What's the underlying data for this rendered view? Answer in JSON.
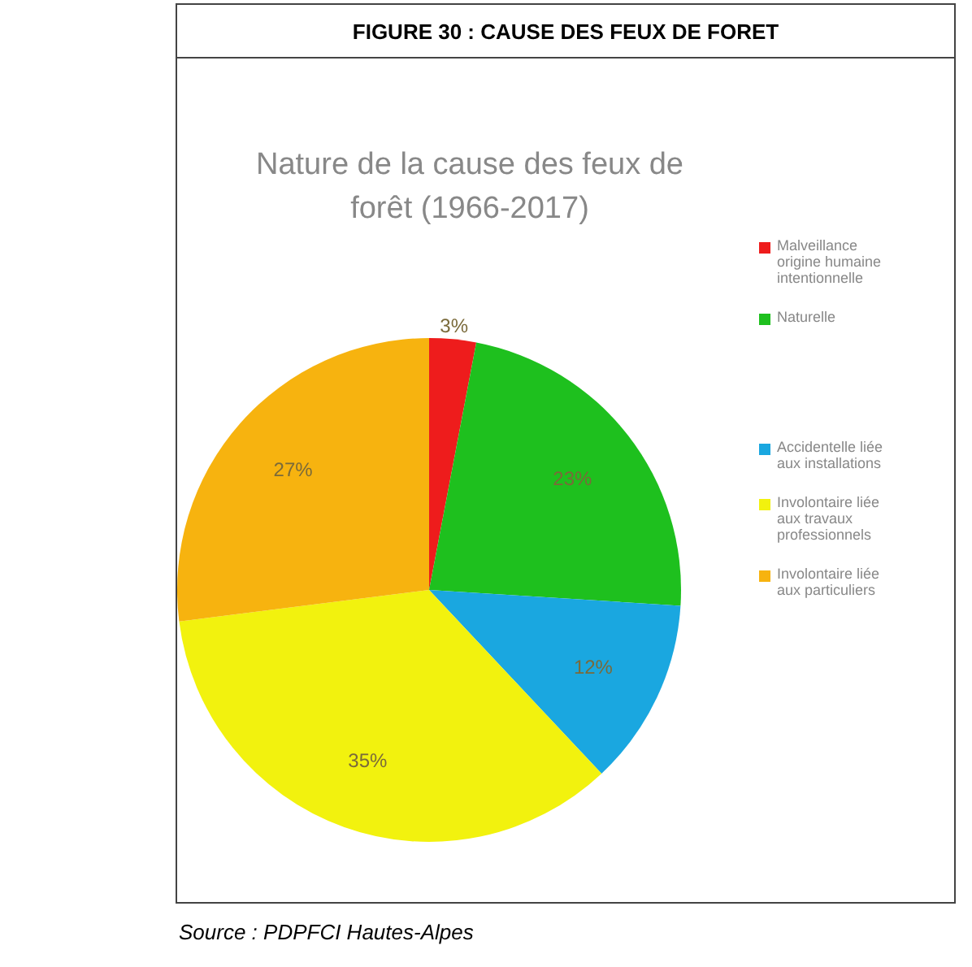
{
  "chart_data": {
    "type": "pie",
    "title": "FIGURE 30 : CAUSE DES FEUX DE FORET",
    "subtitle": "Nature de la cause des feux de forêt (1966-2017)",
    "categories": [
      "Malveillance origine humaine intentionnelle",
      "Naturelle",
      "Accidentelle liée aux installations",
      "Involontaire liée aux travaux professionnels",
      "Involontaire liée aux particuliers"
    ],
    "values": [
      3,
      23,
      12,
      35,
      27
    ],
    "colors": [
      "#ee1c1c",
      "#1ec01e",
      "#1aa7e0",
      "#f2f20e",
      "#f7b30f"
    ],
    "value_labels": [
      "3%",
      "23%",
      "12%",
      "35%",
      "27%"
    ],
    "legend": "right",
    "annotations": [
      "Source : PDPFCI Hautes-Alpes"
    ]
  }
}
